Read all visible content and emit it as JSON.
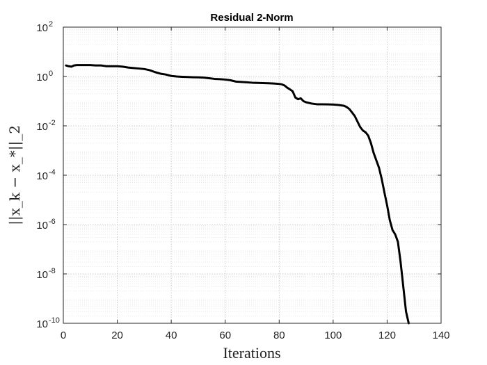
{
  "chart_data": {
    "type": "line",
    "title": "Residual 2-Norm",
    "xlabel": "Iterations",
    "ylabel": "||x_k − x_*||_2",
    "xlim": [
      0,
      140
    ],
    "ylim": [
      1e-10,
      100
    ],
    "yscale": "log",
    "grid": true,
    "minor_grid": true,
    "x_ticks": [
      0,
      20,
      40,
      60,
      80,
      100,
      120,
      140
    ],
    "x_tick_labels": [
      "0",
      "20",
      "40",
      "60",
      "80",
      "100",
      "120",
      "140"
    ],
    "y_ticks": [
      1e-10,
      1e-08,
      1e-06,
      0.0001,
      0.01,
      1,
      100
    ],
    "y_tick_bases": [
      "10",
      "10",
      "10",
      "10",
      "10",
      "10",
      "10"
    ],
    "y_tick_exponents": [
      "-10",
      "-8",
      "-6",
      "-4",
      "-2",
      "0",
      "2"
    ],
    "series": [
      {
        "color": "#000000",
        "x": [
          1,
          2,
          3,
          4,
          5,
          6,
          8,
          10,
          12,
          14,
          15,
          16,
          18,
          20,
          22,
          24,
          26,
          28,
          30,
          32,
          34,
          36,
          38,
          40,
          42,
          44,
          46,
          48,
          50,
          52,
          54,
          56,
          58,
          60,
          62,
          64,
          66,
          68,
          70,
          72,
          74,
          76,
          78,
          80,
          81,
          82,
          83,
          84,
          85,
          86,
          87,
          88,
          89,
          90,
          92,
          94,
          96,
          98,
          100,
          102,
          104,
          105,
          106,
          107,
          108,
          109,
          110,
          111,
          112,
          113,
          114,
          115,
          116,
          117,
          118,
          119,
          120,
          121,
          122,
          123,
          124,
          125,
          126,
          127,
          128
        ],
        "y": [
          2.8,
          2.6,
          2.5,
          2.8,
          2.9,
          2.9,
          2.9,
          2.9,
          2.8,
          2.8,
          2.7,
          2.6,
          2.6,
          2.6,
          2.5,
          2.3,
          2.2,
          2.1,
          2.0,
          1.8,
          1.5,
          1.3,
          1.2,
          1.05,
          1.0,
          0.97,
          0.95,
          0.93,
          0.92,
          0.9,
          0.85,
          0.8,
          0.78,
          0.75,
          0.7,
          0.62,
          0.6,
          0.58,
          0.56,
          0.55,
          0.54,
          0.53,
          0.52,
          0.5,
          0.48,
          0.43,
          0.35,
          0.3,
          0.25,
          0.14,
          0.12,
          0.13,
          0.1,
          0.09,
          0.08,
          0.075,
          0.075,
          0.074,
          0.073,
          0.07,
          0.065,
          0.058,
          0.048,
          0.035,
          0.025,
          0.015,
          0.009,
          0.0065,
          0.0055,
          0.004,
          0.002,
          0.0008,
          0.0004,
          0.0002,
          7e-05,
          2e-05,
          6e-06,
          1.5e-06,
          6e-07,
          4e-07,
          2e-07,
          3e-08,
          3e-09,
          3e-10,
          1e-10
        ]
      }
    ]
  }
}
